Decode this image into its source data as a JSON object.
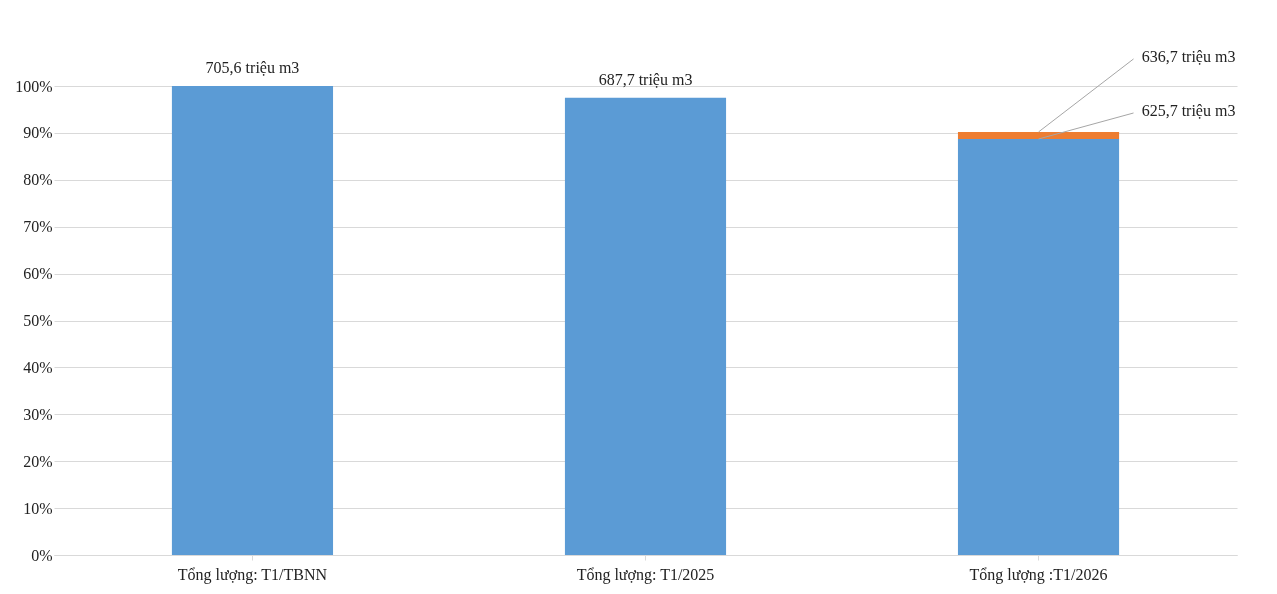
{
  "chart_data": {
    "type": "bar",
    "stacked": true,
    "categories": [
      "Tổng lượng: T1/TBNN",
      "Tổng lượng: T1/2025",
      "Tổng lượng :T1/2026"
    ],
    "series": [
      {
        "color": "#5b9bd5",
        "values": [
          100,
          97.5,
          88.7
        ]
      },
      {
        "color": "#ed7d31",
        "values": [
          null,
          null,
          1.5
        ]
      }
    ],
    "annotations": [
      {
        "text": "705,6 triệu m3",
        "x": "Tổng lượng: T1/TBNN",
        "y": 100
      },
      {
        "text": "687,7 triệu m3",
        "x": "Tổng lượng: T1/2025",
        "y": 97.5
      },
      {
        "text": "625,7 triệu m3",
        "x": "Tổng lượng :T1/2026",
        "y": 88.7
      },
      {
        "text": "636,7 triệu m3",
        "x": "Tổng lượng :T1/2026",
        "y": 90.2
      }
    ],
    "ylim": [
      0,
      100
    ],
    "yticks": [
      {
        "value": 0,
        "label": "0%"
      },
      {
        "value": 10,
        "label": "10%"
      },
      {
        "value": 20,
        "label": "20%"
      },
      {
        "value": 30,
        "label": "30%"
      },
      {
        "value": 40,
        "label": "40%"
      },
      {
        "value": 50,
        "label": "50%"
      },
      {
        "value": 60,
        "label": "60%"
      },
      {
        "value": 70,
        "label": "70%"
      },
      {
        "value": 80,
        "label": "80%"
      },
      {
        "value": 90,
        "label": "90%"
      },
      {
        "value": 100,
        "label": "100%"
      }
    ],
    "grid": "y"
  }
}
